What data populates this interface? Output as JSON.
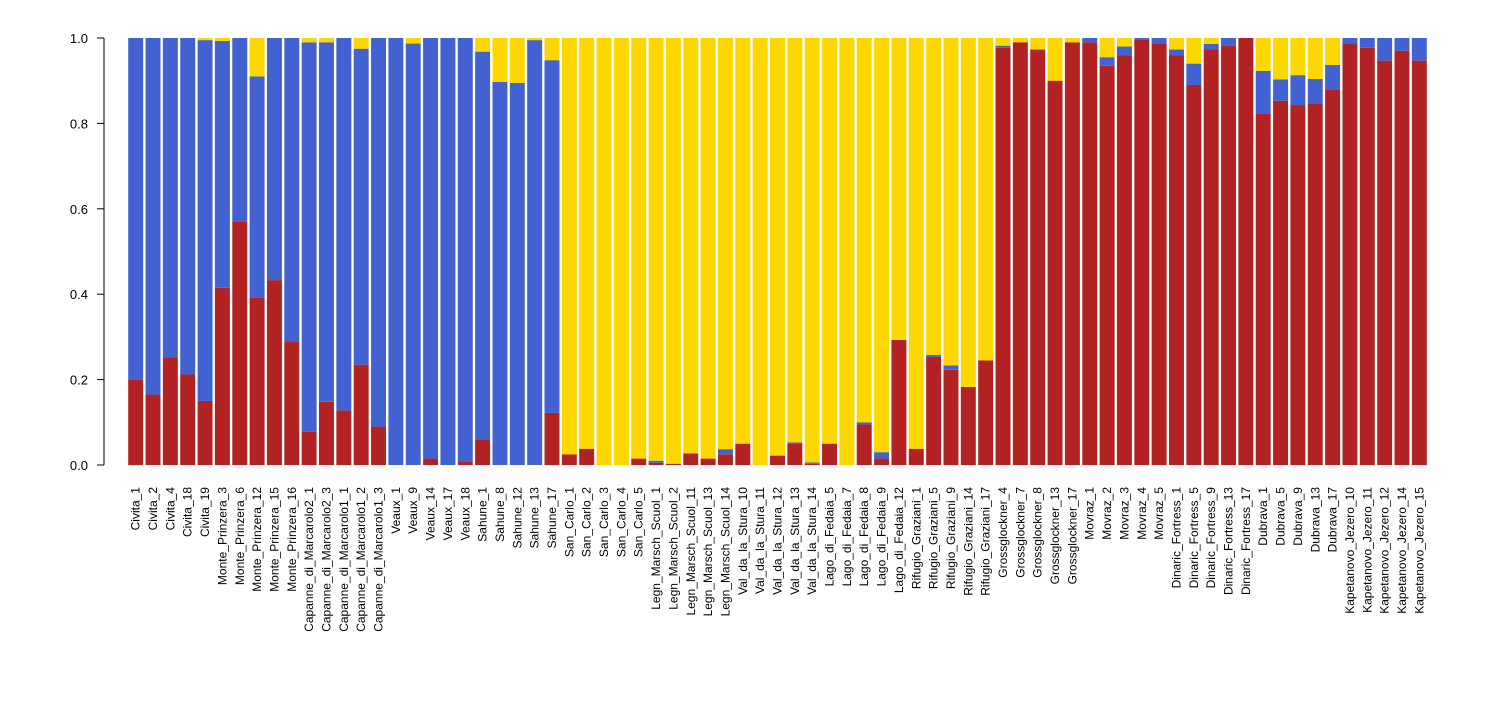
{
  "chart_data": {
    "type": "bar",
    "stacked": true,
    "ylim": [
      0,
      1
    ],
    "yticks": [
      "0.0",
      "0.2",
      "0.4",
      "0.6",
      "0.8",
      "1.0"
    ],
    "categories": [
      "Civita_1",
      "Civita_2",
      "Civita_4",
      "Civita_18",
      "Civita_19",
      "Monte_Prinzera_3",
      "Monte_Prinzera_6",
      "Monte_Prinzera_12",
      "Monte_Prinzera_15",
      "Monte_Prinzera_16",
      "Capanne_di_Marcarolo2_1",
      "Capanne_di_Marcarolo2_3",
      "Capanne_di_Marcarolo1_1",
      "Capanne_di_Marcarolo1_2",
      "Capanne_di_Marcarolo1_3",
      "Veaux_1",
      "Veaux_9",
      "Veaux_14",
      "Veaux_17",
      "Veaux_18",
      "Sahune_1",
      "Sahune_8",
      "Sahune_12",
      "Sahune_13",
      "Sahune_17",
      "San_Carlo_1",
      "San_Carlo_2",
      "San_Carlo_3",
      "San_Carlo_4",
      "San_Carlo_5",
      "Legn_Marsch_Scuol_1",
      "Legn_Marsch_Scuol_2",
      "Legn_Marsch_Scuol_11",
      "Legn_Marsch_Scuol_13",
      "Legn_Marsch_Scuol_14",
      "Val_da_la_Stura_10",
      "Val_da_la_Stura_11",
      "Val_da_la_Stura_12",
      "Val_da_la_Stura_13",
      "Val_da_la_Stura_14",
      "Lago_di_Fedaia_5",
      "Lago_di_Fedaia_7",
      "Lago_di_Fedaia_8",
      "Lago_di_Fedaia_9",
      "Lago_di_Fedaia_12",
      "Rifugio_Graziani_1",
      "Rifugio_Graziani_5",
      "Rifugio_Graziani_9",
      "Rifugio_Graziani_14",
      "Rifugio_Graziani_17",
      "Grossglockner_4",
      "Grossglockner_7",
      "Grossglockner_8",
      "Grossglockner_13",
      "Grossglockner_17",
      "Movraz_1",
      "Movraz_2",
      "Movraz_3",
      "Movraz_4",
      "Movraz_5",
      "Dinaric_Fortress_1",
      "Dinaric_Fortress_5",
      "Dinaric_Fortress_9",
      "Dinaric_Fortress_13",
      "Dinaric_Fortress_17",
      "Dubrava_1",
      "Dubrava_5",
      "Dubrava_9",
      "Dubrava_13",
      "Dubrava_17",
      "Kapetanovo_Jezero_10",
      "Kapetanovo_Jezero_11",
      "Kapetanovo_Jezero_12",
      "Kapetanovo_Jezero_14",
      "Kapetanovo_Jezero_15"
    ],
    "series": [
      {
        "color": "#B22222",
        "values": [
          0.2,
          0.165,
          0.252,
          0.212,
          0.15,
          0.415,
          0.57,
          0.392,
          0.433,
          0.288,
          0.078,
          0.148,
          0.128,
          0.235,
          0.09,
          0.0,
          0.0,
          0.015,
          0.0,
          0.008,
          0.06,
          0.0,
          0.0,
          0.0,
          0.122,
          0.025,
          0.038,
          0.0,
          0.0,
          0.015,
          0.005,
          0.003,
          0.027,
          0.015,
          0.025,
          0.05,
          0.0,
          0.022,
          0.05,
          0.003,
          0.05,
          0.0,
          0.095,
          0.015,
          0.293,
          0.038,
          0.253,
          0.223,
          0.183,
          0.245,
          0.977,
          0.99,
          0.973,
          0.9,
          0.99,
          0.99,
          0.935,
          0.96,
          0.997,
          0.987,
          0.96,
          0.89,
          0.973,
          0.983,
          1.0,
          0.823,
          0.853,
          0.843,
          0.847,
          0.88,
          0.987,
          0.977,
          0.947,
          0.97,
          0.947
        ]
      },
      {
        "color": "#4162D0",
        "values": [
          0.8,
          0.835,
          0.748,
          0.788,
          0.845,
          0.578,
          0.43,
          0.518,
          0.567,
          0.712,
          0.912,
          0.842,
          0.872,
          0.74,
          0.91,
          1.0,
          0.987,
          0.985,
          1.0,
          0.992,
          0.908,
          0.897,
          0.895,
          0.995,
          0.826,
          0.0,
          0.0,
          0.0,
          0.0,
          0.0,
          0.005,
          0.0,
          0.0,
          0.0,
          0.012,
          0.0,
          0.0,
          0.0,
          0.003,
          0.003,
          0.0,
          0.0,
          0.005,
          0.015,
          0.0,
          0.0,
          0.005,
          0.01,
          0.0,
          0.0,
          0.005,
          0.0,
          0.0,
          0.0,
          0.0,
          0.01,
          0.02,
          0.02,
          0.003,
          0.013,
          0.013,
          0.05,
          0.013,
          0.017,
          0.0,
          0.1,
          0.05,
          0.07,
          0.057,
          0.057,
          0.013,
          0.023,
          0.053,
          0.03,
          0.053
        ]
      },
      {
        "color": "#FFD700",
        "values": [
          0.0,
          0.0,
          0.0,
          0.0,
          0.005,
          0.007,
          0.0,
          0.09,
          0.0,
          0.0,
          0.01,
          0.01,
          0.0,
          0.025,
          0.0,
          0.0,
          0.013,
          0.0,
          0.0,
          0.0,
          0.032,
          0.103,
          0.105,
          0.005,
          0.052,
          0.975,
          0.962,
          1.0,
          1.0,
          0.985,
          0.99,
          0.997,
          0.973,
          0.985,
          0.963,
          0.95,
          1.0,
          0.978,
          0.947,
          0.994,
          0.95,
          1.0,
          0.9,
          0.97,
          0.707,
          0.962,
          0.742,
          0.767,
          0.817,
          0.755,
          0.018,
          0.01,
          0.027,
          0.1,
          0.01,
          0.0,
          0.045,
          0.02,
          0.0,
          0.0,
          0.027,
          0.06,
          0.014,
          0.0,
          0.0,
          0.077,
          0.097,
          0.087,
          0.096,
          0.063,
          0.0,
          0.0,
          0.0,
          0.0,
          0.0
        ]
      }
    ]
  }
}
